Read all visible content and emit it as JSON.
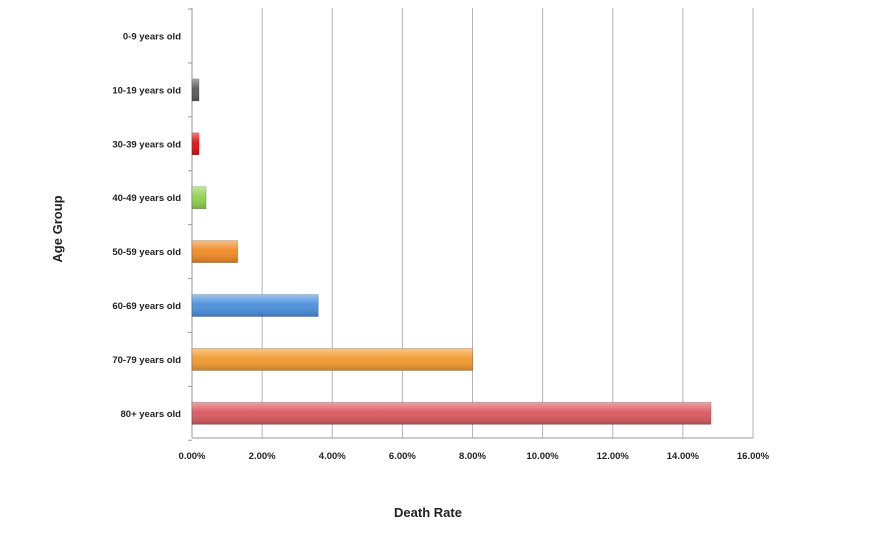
{
  "chart_data": {
    "type": "bar",
    "orientation": "horizontal",
    "title": "",
    "xlabel": "Death Rate",
    "ylabel": "Age Group",
    "categories": [
      "0-9 years old",
      "10-19 years old",
      "30-39 years old",
      "40-49 years old",
      "50-59 years old",
      "60-69 years old",
      "70-79 years old",
      "80+ years old"
    ],
    "values": [
      0.0,
      0.2,
      0.2,
      0.4,
      1.3,
      3.6,
      8.0,
      14.8
    ],
    "value_unit": "percent",
    "bar_colors": [
      "#808080",
      "#5a5a5a",
      "#e01010",
      "#8fd14f",
      "#f08a24",
      "#4a8fdc",
      "#f29a2e",
      "#d9595f"
    ],
    "xlim": [
      0,
      16
    ],
    "xticks": [
      0,
      2,
      4,
      6,
      8,
      10,
      12,
      14,
      16
    ],
    "xtick_labels": [
      "0.00%",
      "2.00%",
      "4.00%",
      "6.00%",
      "8.00%",
      "10.00%",
      "12.00%",
      "14.00%",
      "16.00%"
    ],
    "grid": true,
    "legend": "none"
  }
}
